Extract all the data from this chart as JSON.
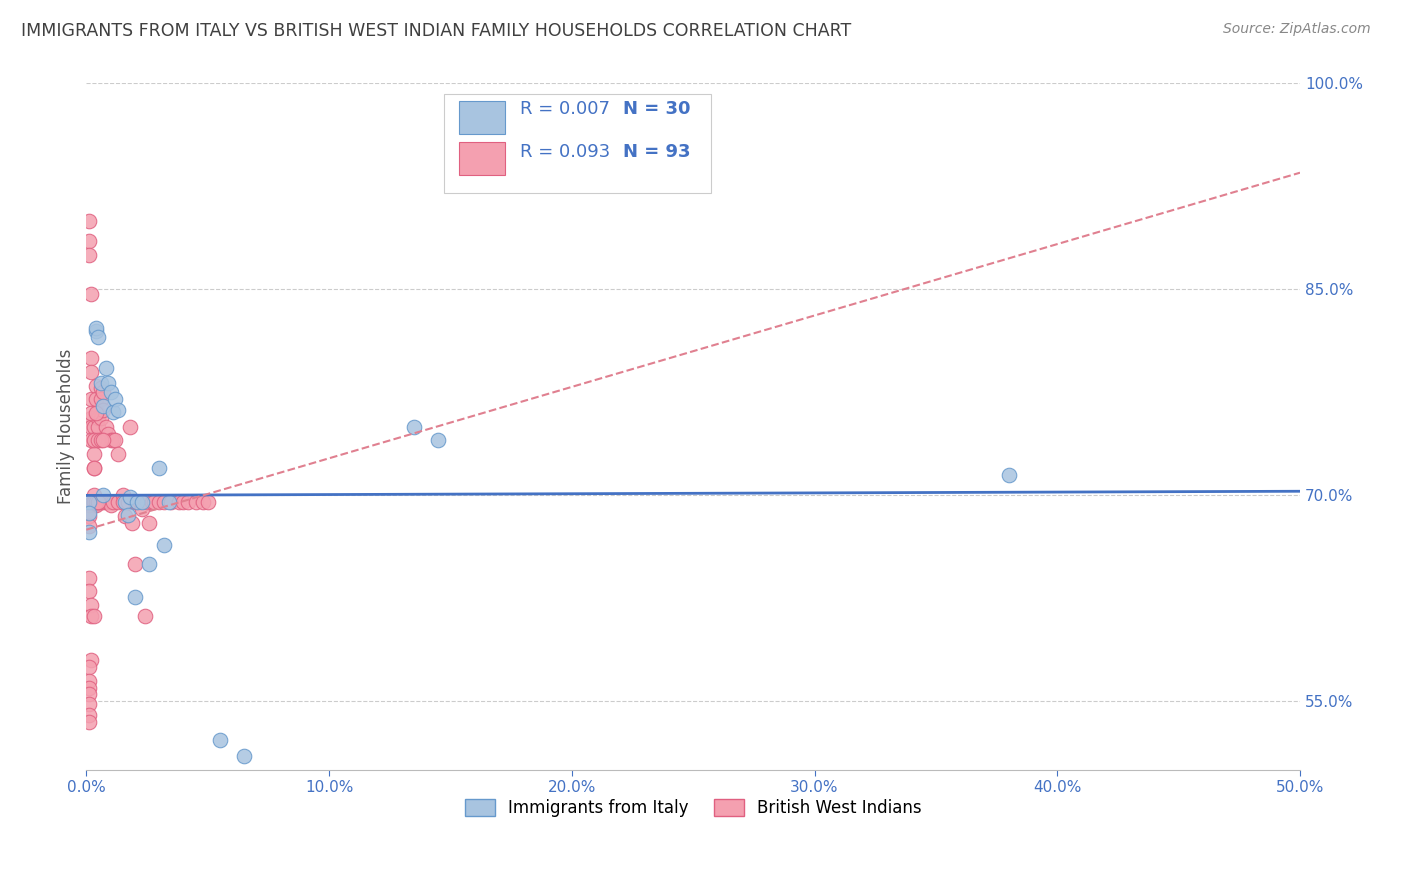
{
  "title": "IMMIGRANTS FROM ITALY VS BRITISH WEST INDIAN FAMILY HOUSEHOLDS CORRELATION CHART",
  "source": "Source: ZipAtlas.com",
  "ylabel": "Family Households",
  "xlim": [
    0.0,
    0.5
  ],
  "ylim": [
    0.5,
    1.0
  ],
  "xticks": [
    0.0,
    0.1,
    0.2,
    0.3,
    0.4,
    0.5
  ],
  "yticks": [
    0.55,
    0.7,
    0.85,
    1.0
  ],
  "xtick_labels": [
    "0.0%",
    "10.0%",
    "20.0%",
    "30.0%",
    "40.0%",
    "50.0%"
  ],
  "ytick_labels": [
    "55.0%",
    "70.0%",
    "85.0%",
    "100.0%"
  ],
  "legend_italy_R": "R = 0.007",
  "legend_italy_N": "N = 30",
  "legend_bwi_R": "R = 0.093",
  "legend_bwi_N": "N = 93",
  "italy_color": "#a8c4e0",
  "bwi_color": "#f4a0b0",
  "italy_edge": "#6699cc",
  "bwi_edge": "#e06080",
  "trend_italy_color": "#4472c4",
  "trend_bwi_color": "#e08090",
  "axis_color": "#4472c4",
  "grid_color": "#cccccc",
  "title_color": "#404040",
  "source_color": "#888888",
  "italy_trend_x": [
    0.0,
    0.5
  ],
  "italy_trend_y": [
    0.7,
    0.703
  ],
  "bwi_trend_x": [
    0.0,
    0.5
  ],
  "bwi_trend_y": [
    0.675,
    0.935
  ],
  "italy_x": [
    0.001,
    0.001,
    0.001,
    0.004,
    0.004,
    0.005,
    0.006,
    0.007,
    0.007,
    0.008,
    0.009,
    0.01,
    0.011,
    0.012,
    0.013,
    0.016,
    0.017,
    0.018,
    0.02,
    0.021,
    0.023,
    0.026,
    0.03,
    0.032,
    0.034,
    0.055,
    0.065,
    0.135,
    0.145,
    0.38
  ],
  "italy_y": [
    0.695,
    0.687,
    0.673,
    0.82,
    0.822,
    0.815,
    0.782,
    0.765,
    0.7,
    0.793,
    0.782,
    0.775,
    0.761,
    0.77,
    0.762,
    0.695,
    0.686,
    0.699,
    0.626,
    0.695,
    0.695,
    0.65,
    0.72,
    0.664,
    0.695,
    0.522,
    0.51,
    0.75,
    0.74,
    0.715
  ],
  "bwi_x": [
    0.001,
    0.001,
    0.001,
    0.002,
    0.002,
    0.002,
    0.002,
    0.002,
    0.002,
    0.003,
    0.003,
    0.003,
    0.003,
    0.003,
    0.003,
    0.004,
    0.004,
    0.004,
    0.005,
    0.005,
    0.005,
    0.005,
    0.006,
    0.006,
    0.006,
    0.006,
    0.007,
    0.007,
    0.007,
    0.008,
    0.008,
    0.009,
    0.009,
    0.01,
    0.01,
    0.01,
    0.011,
    0.011,
    0.012,
    0.013,
    0.013,
    0.015,
    0.015,
    0.016,
    0.017,
    0.018,
    0.019,
    0.02,
    0.02,
    0.021,
    0.022,
    0.023,
    0.024,
    0.025,
    0.026,
    0.027,
    0.028,
    0.03,
    0.032,
    0.035,
    0.038,
    0.04,
    0.042,
    0.045,
    0.048,
    0.05,
    0.001,
    0.001,
    0.001,
    0.002,
    0.002,
    0.003,
    0.003,
    0.003,
    0.004,
    0.004,
    0.005,
    0.005,
    0.006,
    0.007,
    0.001,
    0.001,
    0.002,
    0.002,
    0.003,
    0.002,
    0.001,
    0.001,
    0.001,
    0.001,
    0.001,
    0.001,
    0.001
  ],
  "bwi_y": [
    0.9,
    0.885,
    0.875,
    0.847,
    0.8,
    0.79,
    0.77,
    0.756,
    0.75,
    0.75,
    0.74,
    0.73,
    0.72,
    0.7,
    0.693,
    0.78,
    0.77,
    0.693,
    0.76,
    0.756,
    0.75,
    0.695,
    0.778,
    0.77,
    0.756,
    0.695,
    0.775,
    0.762,
    0.695,
    0.75,
    0.695,
    0.745,
    0.695,
    0.74,
    0.695,
    0.693,
    0.74,
    0.695,
    0.74,
    0.73,
    0.695,
    0.7,
    0.695,
    0.685,
    0.695,
    0.75,
    0.68,
    0.695,
    0.65,
    0.695,
    0.695,
    0.69,
    0.612,
    0.695,
    0.68,
    0.695,
    0.695,
    0.695,
    0.695,
    0.695,
    0.695,
    0.695,
    0.695,
    0.695,
    0.695,
    0.695,
    0.693,
    0.685,
    0.678,
    0.76,
    0.74,
    0.74,
    0.72,
    0.695,
    0.76,
    0.695,
    0.74,
    0.695,
    0.74,
    0.74,
    0.64,
    0.63,
    0.62,
    0.612,
    0.612,
    0.58,
    0.575,
    0.565,
    0.56,
    0.555,
    0.548,
    0.54,
    0.535
  ]
}
